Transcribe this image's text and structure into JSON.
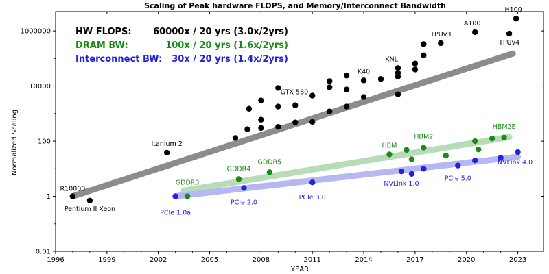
{
  "chart_data": {
    "type": "scatter",
    "title": "Scaling of Peak hardware FLOPS, and Memory/Interconnect Bandwidth",
    "xlabel": "YEAR",
    "ylabel": "Normalized Scaling",
    "xlim": [
      1996,
      2024.5
    ],
    "ylim": [
      0.01,
      5000000
    ],
    "yscale": "log",
    "grid": false,
    "legend_placement": "top-left",
    "x_ticks": [
      1996,
      1999,
      2002,
      2005,
      2008,
      2011,
      2014,
      2017,
      2020,
      2023
    ],
    "y_ticks": [
      {
        "value": 0.01,
        "label": "0.01"
      },
      {
        "value": 1,
        "label": "1"
      },
      {
        "value": 100,
        "label": "100"
      },
      {
        "value": 10000,
        "label": "10000"
      },
      {
        "value": 1000000,
        "label": "1000000"
      }
    ],
    "legend": [
      {
        "name": "HW FLOPS:",
        "value": "60000x / 20 yrs (3.0x/2yrs)",
        "color": "#000000"
      },
      {
        "name": "DRAM BW:",
        "value": "100x / 20 yrs (1.6x/2yrs)",
        "color": "#1a8a1a"
      },
      {
        "name": "Interconnect BW:",
        "value": "30x / 20 yrs (1.4x/2yrs)",
        "color": "#2222dd"
      }
    ],
    "series": [
      {
        "name": "HW FLOPS",
        "color": "#000000",
        "trend_color": "#8c8c8c",
        "trend": [
          {
            "x": 1997,
            "y": 1.0
          },
          {
            "x": 2022.7,
            "y": 150000
          }
        ],
        "points": [
          {
            "x": 1997.0,
            "y": 1.0
          },
          {
            "x": 1998.0,
            "y": 0.7
          },
          {
            "x": 2002.5,
            "y": 38
          },
          {
            "x": 2006.5,
            "y": 130
          },
          {
            "x": 2007.2,
            "y": 270
          },
          {
            "x": 2007.3,
            "y": 1500
          },
          {
            "x": 2008.0,
            "y": 600
          },
          {
            "x": 2008.0,
            "y": 300
          },
          {
            "x": 2008.0,
            "y": 3000
          },
          {
            "x": 2009.0,
            "y": 1800
          },
          {
            "x": 2009.0,
            "y": 330
          },
          {
            "x": 2009.0,
            "y": 8500
          },
          {
            "x": 2010.0,
            "y": 2000
          },
          {
            "x": 2010.0,
            "y": 480
          },
          {
            "x": 2011.0,
            "y": 4500
          },
          {
            "x": 2011.0,
            "y": 500
          },
          {
            "x": 2012.0,
            "y": 9000
          },
          {
            "x": 2012.0,
            "y": 15000
          },
          {
            "x": 2012.0,
            "y": 1200
          },
          {
            "x": 2013.0,
            "y": 24000
          },
          {
            "x": 2013.0,
            "y": 7500
          },
          {
            "x": 2013.0,
            "y": 1800
          },
          {
            "x": 2014.0,
            "y": 16000
          },
          {
            "x": 2014.0,
            "y": 4000
          },
          {
            "x": 2015.0,
            "y": 18000
          },
          {
            "x": 2016.0,
            "y": 45000
          },
          {
            "x": 2016.0,
            "y": 30000
          },
          {
            "x": 2016.0,
            "y": 22000
          },
          {
            "x": 2016.0,
            "y": 5000
          },
          {
            "x": 2017.0,
            "y": 65000
          },
          {
            "x": 2017.0,
            "y": 40000
          },
          {
            "x": 2017.5,
            "y": 130000
          },
          {
            "x": 2017.5,
            "y": 330000
          },
          {
            "x": 2018.5,
            "y": 360000
          },
          {
            "x": 2020.5,
            "y": 900000
          },
          {
            "x": 2022.5,
            "y": 800000
          },
          {
            "x": 2022.9,
            "y": 2800000
          }
        ],
        "labels": [
          {
            "text": "R10000",
            "x": 1997.0,
            "y": 1.0,
            "anchor": "middle",
            "dx": 0,
            "dy": -8
          },
          {
            "text": "Pentium II Xeon",
            "x": 1998.0,
            "y": 0.7,
            "anchor": "middle",
            "dx": 0,
            "dy": 15
          },
          {
            "text": "Itanium 2",
            "x": 2002.5,
            "y": 38,
            "anchor": "middle",
            "dx": 0,
            "dy": -10
          },
          {
            "text": "GTX 580",
            "x": 2011.0,
            "y": 4500,
            "anchor": "end",
            "dx": -6,
            "dy": -2
          },
          {
            "text": "K40",
            "x": 2014.0,
            "y": 16000,
            "anchor": "middle",
            "dx": 0,
            "dy": -10
          },
          {
            "text": "KNL",
            "x": 2016.0,
            "y": 45000,
            "anchor": "end",
            "dx": 0,
            "dy": -10
          },
          {
            "text": "TPUv3",
            "x": 2018.5,
            "y": 360000,
            "anchor": "middle",
            "dx": 0,
            "dy": -10
          },
          {
            "text": "A100",
            "x": 2020.5,
            "y": 900000,
            "anchor": "middle",
            "dx": -4,
            "dy": -10
          },
          {
            "text": "H100",
            "x": 2022.9,
            "y": 2800000,
            "anchor": "middle",
            "dx": -4,
            "dy": -10
          },
          {
            "text": "TPUv4",
            "x": 2022.5,
            "y": 800000,
            "anchor": "middle",
            "dx": 0,
            "dy": 16
          }
        ]
      },
      {
        "name": "DRAM BW",
        "color": "#1a8a1a",
        "trend_color": "#b8dcb8",
        "trend": [
          {
            "x": 2003.5,
            "y": 1.6
          },
          {
            "x": 2022.5,
            "y": 140
          }
        ],
        "points": [
          {
            "x": 2003.7,
            "y": 1.0
          },
          {
            "x": 2006.7,
            "y": 4.2
          },
          {
            "x": 2008.5,
            "y": 7.5
          },
          {
            "x": 2015.5,
            "y": 33
          },
          {
            "x": 2016.5,
            "y": 48
          },
          {
            "x": 2016.8,
            "y": 22
          },
          {
            "x": 2017.5,
            "y": 58
          },
          {
            "x": 2018.8,
            "y": 30
          },
          {
            "x": 2020.5,
            "y": 100
          },
          {
            "x": 2020.7,
            "y": 50
          },
          {
            "x": 2021.5,
            "y": 125
          },
          {
            "x": 2022.2,
            "y": 135
          }
        ],
        "labels": [
          {
            "text": "GDDR3",
            "x": 2003.7,
            "y": 1.0,
            "anchor": "middle",
            "dx": 0,
            "dy": -17
          },
          {
            "text": "GDDR4",
            "x": 2006.7,
            "y": 4.2,
            "anchor": "middle",
            "dx": 0,
            "dy": -12
          },
          {
            "text": "GDDR5",
            "x": 2008.5,
            "y": 7.5,
            "anchor": "middle",
            "dx": 0,
            "dy": -12
          },
          {
            "text": "HBM",
            "x": 2015.5,
            "y": 33,
            "anchor": "middle",
            "dx": 0,
            "dy": -10
          },
          {
            "text": "HBM2",
            "x": 2017.5,
            "y": 58,
            "anchor": "middle",
            "dx": 0,
            "dy": -13
          },
          {
            "text": "HBM2E",
            "x": 2022.2,
            "y": 135,
            "anchor": "middle",
            "dx": 0,
            "dy": -13
          }
        ]
      },
      {
        "name": "Interconnect BW",
        "color": "#2222dd",
        "trend_color": "#b7b7f2",
        "trend": [
          {
            "x": 2003.0,
            "y": 1.0
          },
          {
            "x": 2023.0,
            "y": 27
          }
        ],
        "points": [
          {
            "x": 2003.0,
            "y": 1.0
          },
          {
            "x": 2007.0,
            "y": 2.0
          },
          {
            "x": 2011.0,
            "y": 3.2
          },
          {
            "x": 2016.2,
            "y": 8.0
          },
          {
            "x": 2016.8,
            "y": 6.5
          },
          {
            "x": 2017.5,
            "y": 10
          },
          {
            "x": 2019.5,
            "y": 13
          },
          {
            "x": 2020.5,
            "y": 20
          },
          {
            "x": 2022.0,
            "y": 25
          },
          {
            "x": 2023.0,
            "y": 40
          }
        ],
        "labels": [
          {
            "text": "PCIe 1.0a",
            "x": 2003.0,
            "y": 1.0,
            "anchor": "middle",
            "dx": 0,
            "dy": 27
          },
          {
            "text": "PCIe 2.0",
            "x": 2007.0,
            "y": 2.0,
            "anchor": "middle",
            "dx": 0,
            "dy": 24
          },
          {
            "text": "PCIe 3.0",
            "x": 2011.0,
            "y": 3.2,
            "anchor": "middle",
            "dx": 0,
            "dy": 25
          },
          {
            "text": "NVLink 1.0",
            "x": 2016.2,
            "y": 8.0,
            "anchor": "middle",
            "dx": 0,
            "dy": 21
          },
          {
            "text": "PCIe 5.0",
            "x": 2019.5,
            "y": 13,
            "anchor": "middle",
            "dx": 0,
            "dy": 22
          },
          {
            "text": "NVLink 4.0",
            "x": 2023.0,
            "y": 40,
            "anchor": "middle",
            "dx": -4,
            "dy": 18
          }
        ]
      }
    ]
  }
}
